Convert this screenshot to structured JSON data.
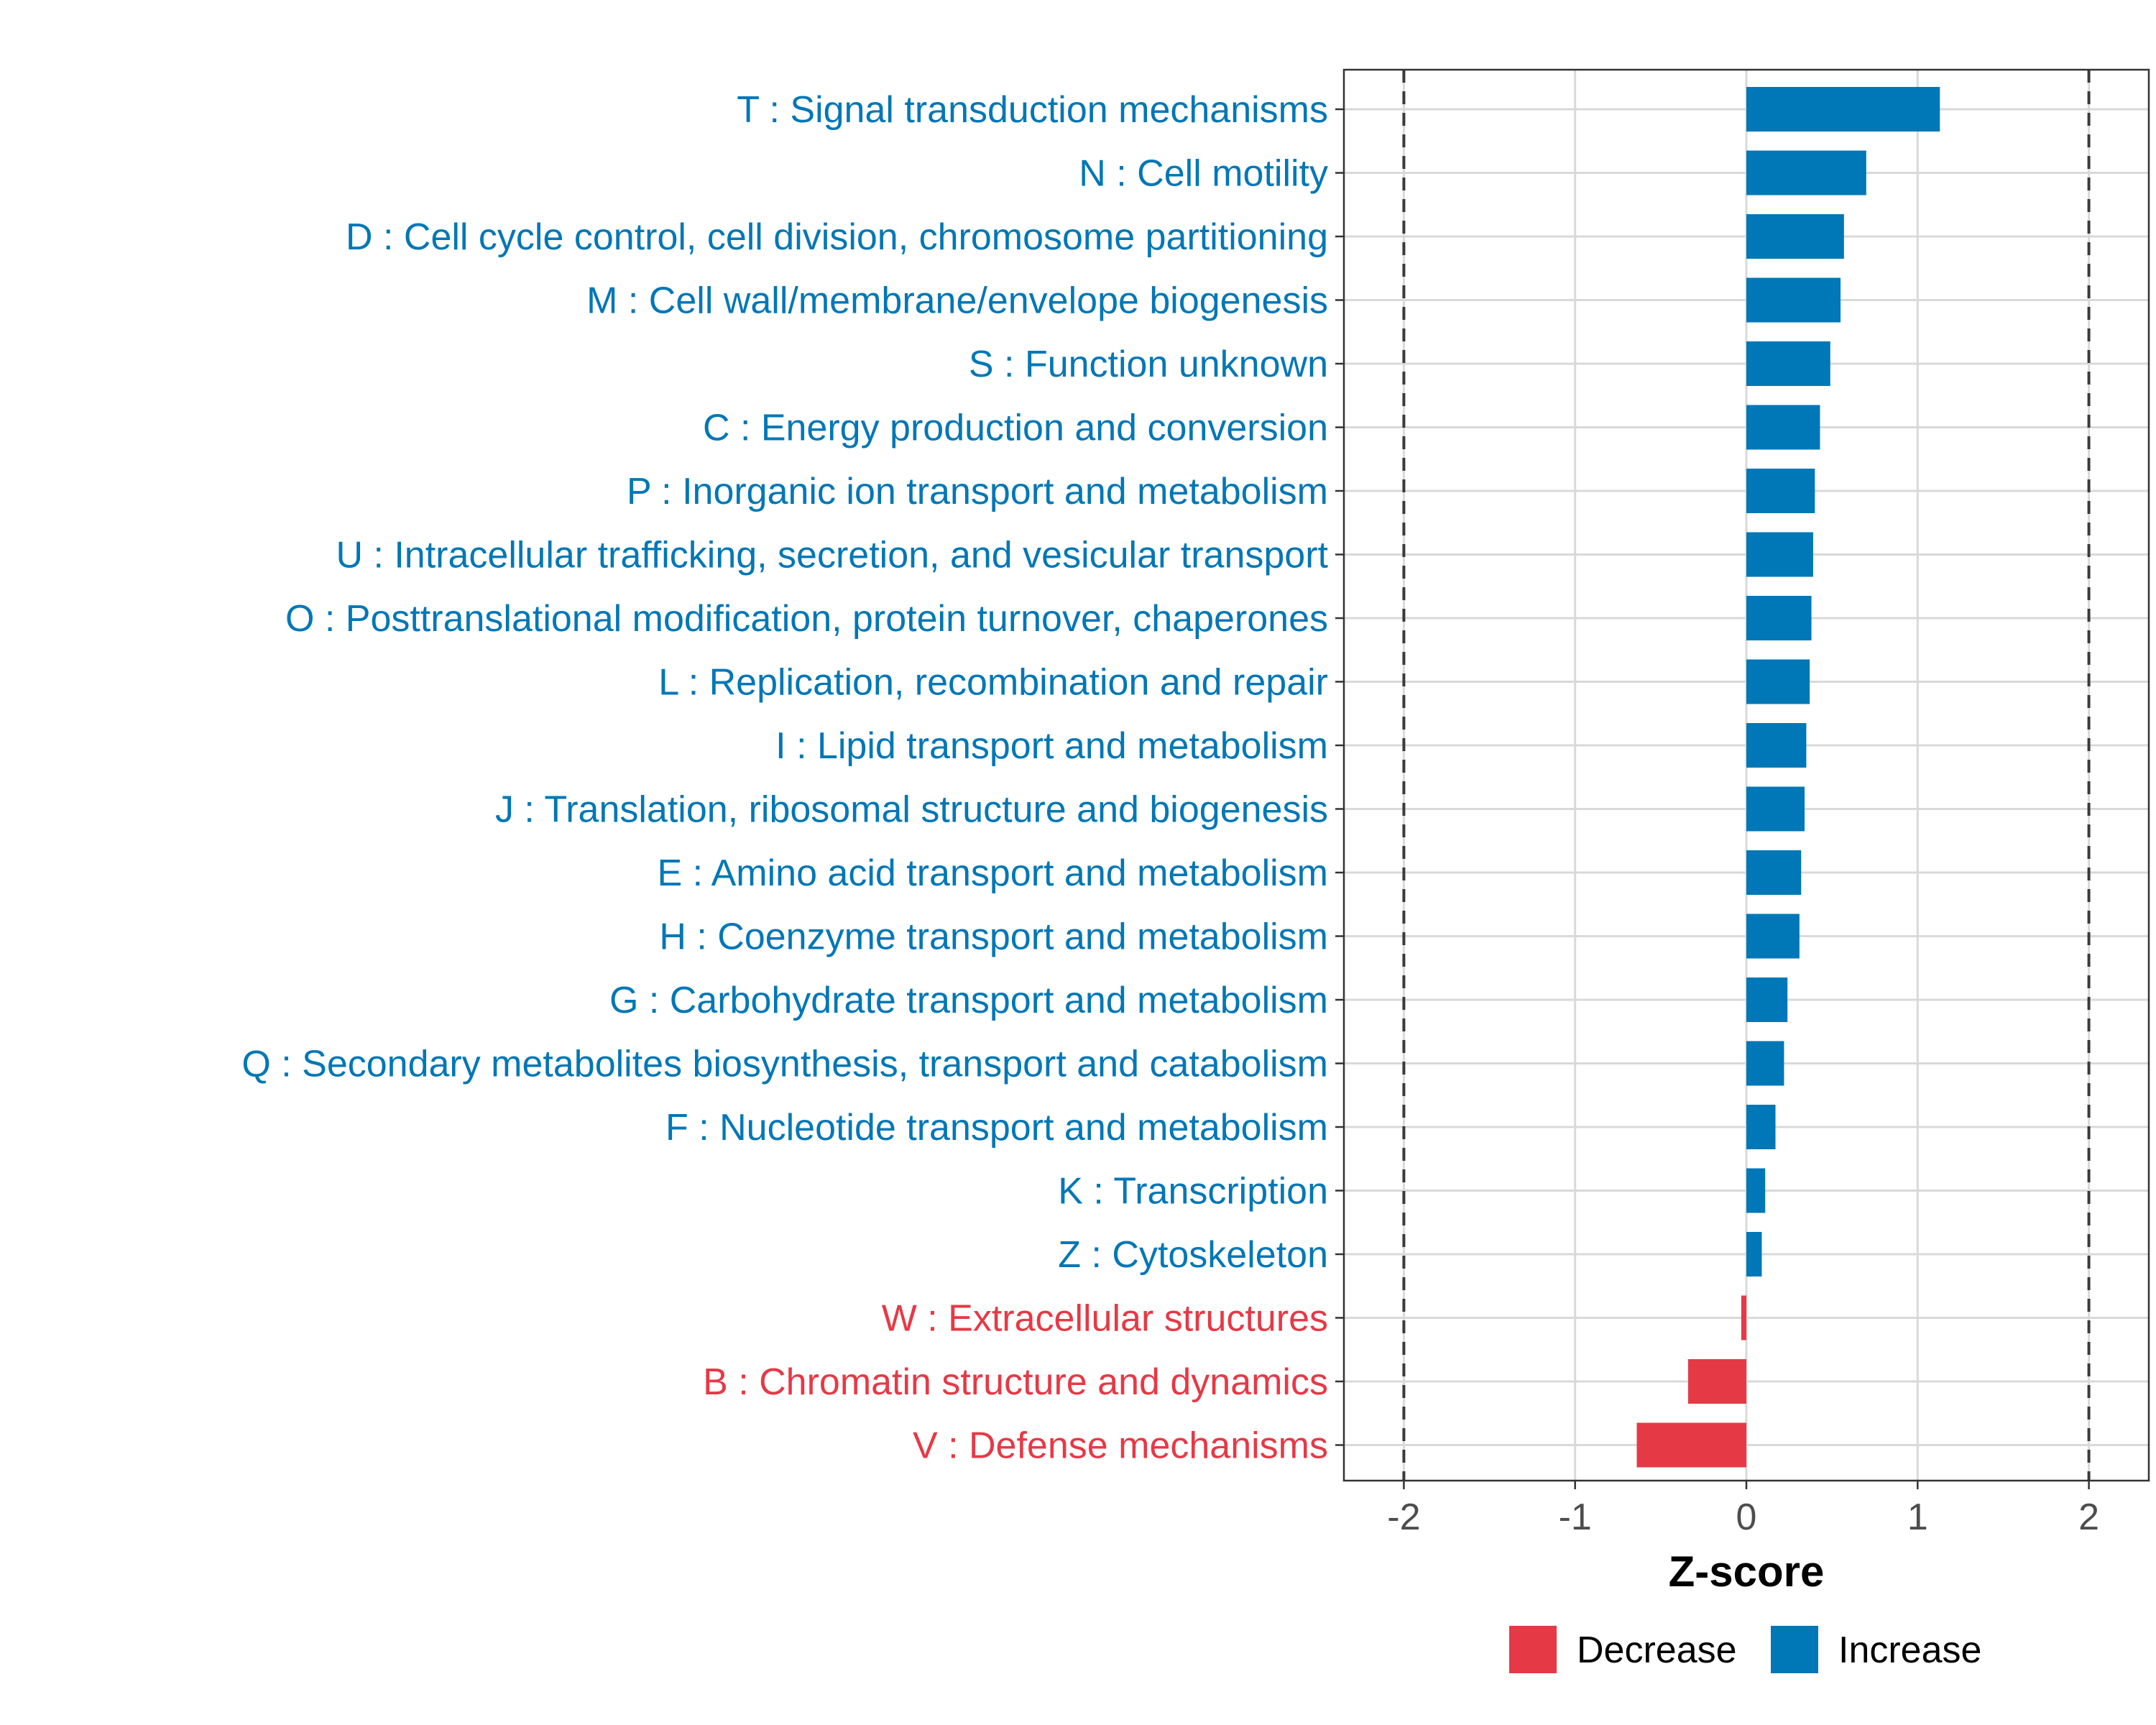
{
  "chart_data": {
    "type": "bar",
    "orientation": "horizontal",
    "xlabel": "Z-score",
    "xlim": [
      -2.35,
      2.35
    ],
    "xticks": [
      -2,
      -1,
      0,
      1,
      2
    ],
    "xtick_labels": [
      "-2",
      "-1",
      "0",
      "1",
      "2"
    ],
    "reference_lines": [
      -2,
      2
    ],
    "grid": true,
    "legend_position": "bottom-right",
    "colors": {
      "Decrease": "#E63946",
      "Increase": "#0077B6"
    },
    "legend": [
      {
        "name": "Decrease",
        "color": "#E63946"
      },
      {
        "name": "Increase",
        "color": "#0077B6"
      }
    ],
    "categories": [
      "T : Signal transduction mechanisms",
      "N : Cell motility",
      "D : Cell cycle control, cell division, chromosome partitioning",
      "M : Cell wall/membrane/envelope biogenesis",
      "S : Function unknown",
      "C : Energy production and conversion",
      "P : Inorganic ion transport and metabolism",
      "U : Intracellular trafficking, secretion, and vesicular transport",
      "O : Posttranslational modification, protein turnover, chaperones",
      "L : Replication, recombination and repair",
      "I : Lipid transport and metabolism",
      "J : Translation, ribosomal structure and biogenesis",
      "E : Amino acid transport and metabolism",
      "H : Coenzyme transport and metabolism",
      "G : Carbohydrate transport and metabolism",
      "Q : Secondary metabolites biosynthesis, transport and catabolism",
      "F : Nucleotide transport and metabolism",
      "K : Transcription",
      "Z : Cytoskeleton",
      "W : Extracellular structures",
      "B : Chromatin structure and dynamics",
      "V : Defense mechanisms"
    ],
    "values": [
      1.13,
      0.7,
      0.57,
      0.55,
      0.49,
      0.43,
      0.4,
      0.39,
      0.38,
      0.37,
      0.35,
      0.34,
      0.32,
      0.31,
      0.24,
      0.22,
      0.17,
      0.11,
      0.09,
      -0.03,
      -0.34,
      -0.64
    ],
    "groups": [
      "Increase",
      "Increase",
      "Increase",
      "Increase",
      "Increase",
      "Increase",
      "Increase",
      "Increase",
      "Increase",
      "Increase",
      "Increase",
      "Increase",
      "Increase",
      "Increase",
      "Increase",
      "Increase",
      "Increase",
      "Increase",
      "Increase",
      "Decrease",
      "Decrease",
      "Decrease"
    ]
  }
}
